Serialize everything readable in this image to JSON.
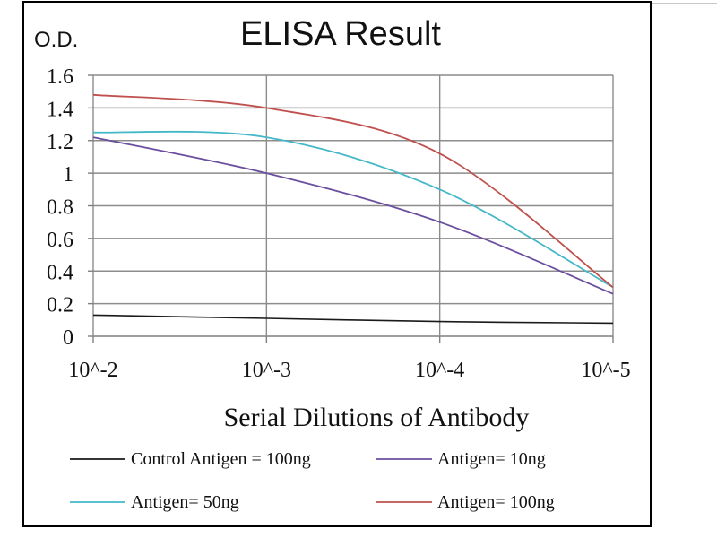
{
  "chart_data": {
    "type": "line",
    "title": "ELISA Result",
    "ylabel": "O.D.",
    "xlabel": "Serial Dilutions  of Antibody",
    "x_ticks": [
      "10^-2",
      "10^-3",
      "10^-4",
      "10^-5"
    ],
    "x_values": [
      -2,
      -3,
      -4,
      -5
    ],
    "ylim": [
      0,
      1.6
    ],
    "y_ticks": [
      "0",
      "0.2",
      "0.4",
      "0.6",
      "0.8",
      "1",
      "1.2",
      "1.4",
      "1.6"
    ],
    "y_tick_values": [
      0,
      0.2,
      0.4,
      0.6,
      0.8,
      1,
      1.2,
      1.4,
      1.6
    ],
    "grid": true,
    "legend_position": "bottom",
    "series": [
      {
        "name": "Control Antigen = 100ng",
        "color": "#1a1a1a",
        "x": [
          -2,
          -3,
          -4,
          -5
        ],
        "y": [
          0.13,
          0.11,
          0.09,
          0.08
        ]
      },
      {
        "name": "Antigen= 10ng",
        "color": "#6b4f9e",
        "x": [
          -2,
          -3,
          -4,
          -5
        ],
        "y": [
          1.22,
          1.0,
          0.7,
          0.26
        ]
      },
      {
        "name": "Antigen= 50ng",
        "color": "#45b8c8",
        "x": [
          -2,
          -3,
          -4,
          -5
        ],
        "y": [
          1.25,
          1.22,
          0.9,
          0.3
        ]
      },
      {
        "name": "Antigen= 100ng",
        "color": "#c0504d",
        "x": [
          -2,
          -3,
          -4,
          -5
        ],
        "y": [
          1.48,
          1.4,
          1.12,
          0.3
        ]
      }
    ]
  }
}
